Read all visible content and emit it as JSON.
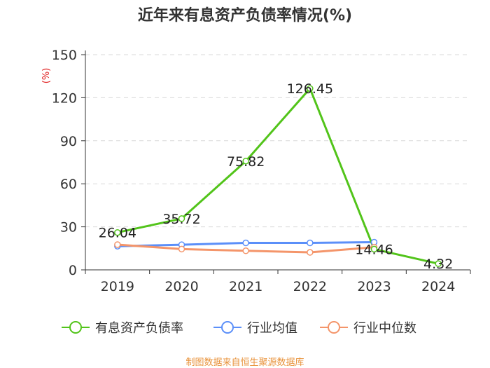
{
  "chart_data": {
    "type": "line",
    "title": "近年来有息资产负债率情况(%)",
    "ylabel": "(%)",
    "xlabel": "",
    "categories": [
      "2019",
      "2020",
      "2021",
      "2022",
      "2023",
      "2024"
    ],
    "ylim": [
      0,
      150
    ],
    "yticks": [
      0,
      30,
      60,
      90,
      120,
      150
    ],
    "grid": true,
    "legend_position": "bottom",
    "series": [
      {
        "name": "有息资产负债率",
        "color": "#52c41a",
        "values": [
          26.04,
          35.72,
          75.82,
          126.45,
          14.46,
          4.32
        ],
        "labels": [
          "26.04",
          "35.72",
          "75.82",
          "126.45",
          "14.46",
          "4.32"
        ]
      },
      {
        "name": "行业均值",
        "color": "#5b8ff9",
        "values": [
          16.5,
          17.5,
          18.8,
          18.8,
          19.3,
          null
        ]
      },
      {
        "name": "行业中位数",
        "color": "#f4956a",
        "values": [
          17.6,
          14.5,
          13.3,
          12.2,
          15.8,
          null
        ]
      }
    ]
  },
  "source": "制图数据来自恒生聚源数据库"
}
